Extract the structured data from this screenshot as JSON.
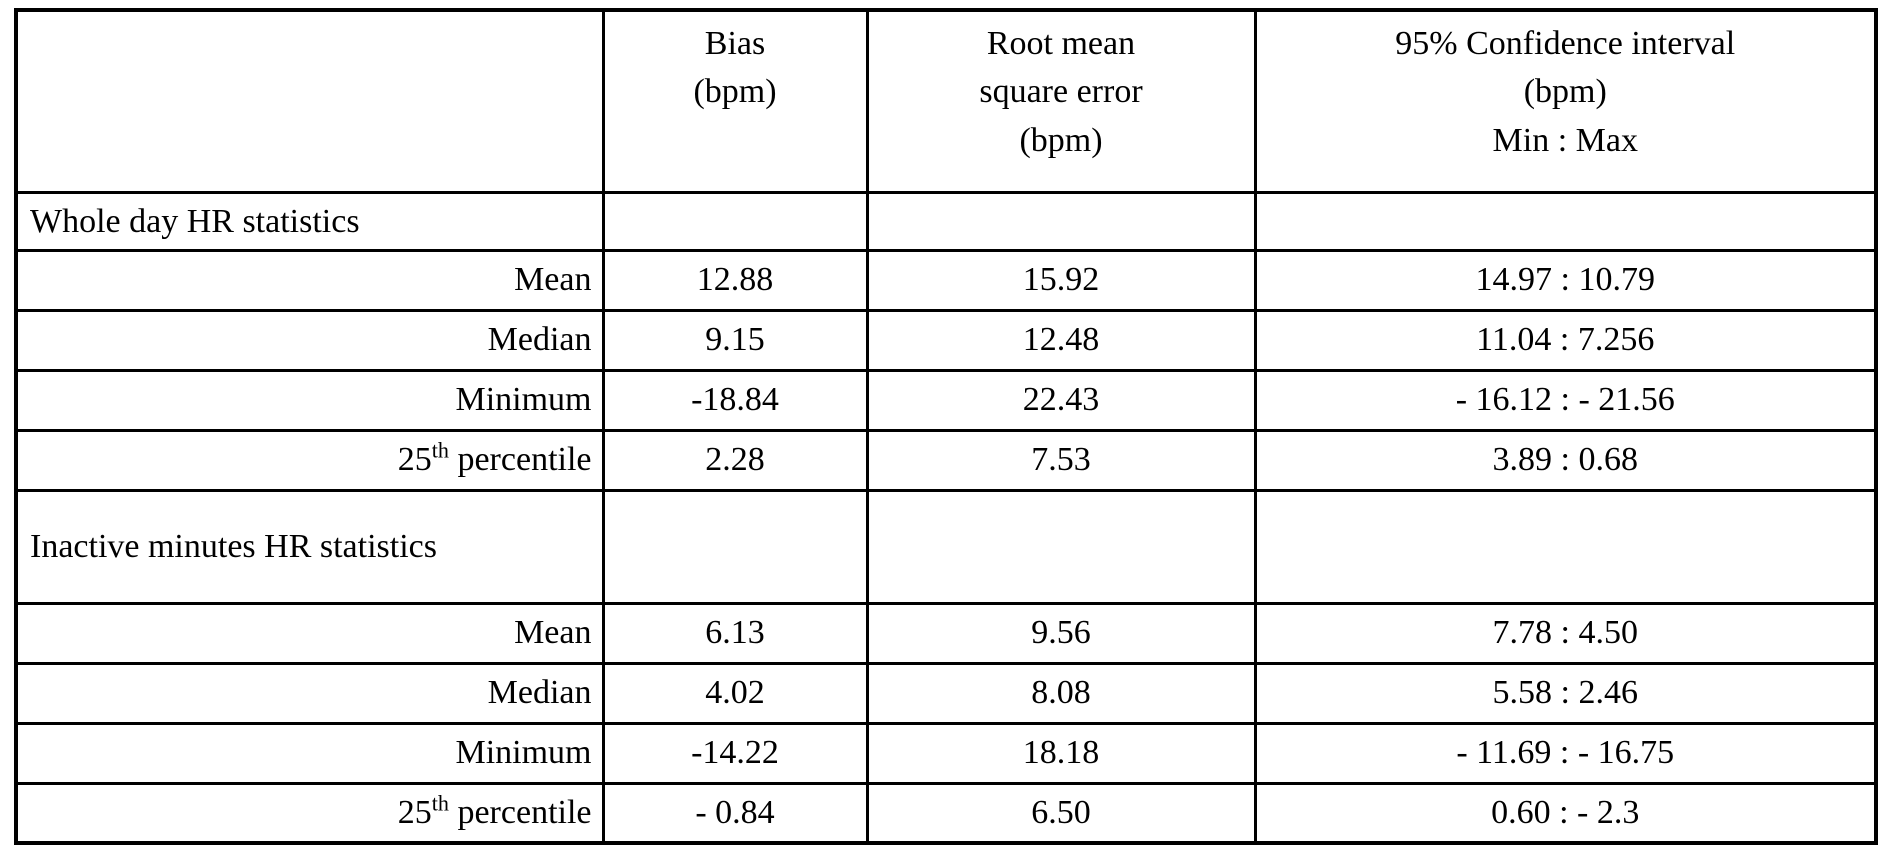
{
  "page": {
    "background_color": "#ffffff",
    "text_color": "#000000",
    "border_color": "#000000"
  },
  "table": {
    "headers": {
      "row_label": "",
      "bias": "Bias\n(bpm)",
      "rmse": "Root mean\nsquare error\n(bpm)",
      "ci": "95% Confidence interval\n(bpm)\nMin : Max"
    },
    "sections": [
      {
        "title": "Whole day HR statistics",
        "rows": [
          {
            "label": "Mean",
            "bias": "12.88",
            "rmse": "15.92",
            "ci": "14.97 : 10.79"
          },
          {
            "label": "Median",
            "bias": "9.15",
            "rmse": "12.48",
            "ci": "11.04 : 7.256"
          },
          {
            "label": "Minimum",
            "bias": "-18.84",
            "rmse": "22.43",
            "ci": "- 16.12 : - 21.56"
          },
          {
            "label_base": "25",
            "label_sup": "th",
            "label_rest": " percentile",
            "bias": "2.28",
            "rmse": "7.53",
            "ci": "3.89 : 0.68"
          }
        ]
      },
      {
        "title": "Inactive minutes HR statistics",
        "rows": [
          {
            "label": "Mean",
            "bias": "6.13",
            "rmse": "9.56",
            "ci": "7.78 : 4.50"
          },
          {
            "label": "Median",
            "bias": "4.02",
            "rmse": "8.08",
            "ci": "5.58 : 2.46"
          },
          {
            "label": "Minimum",
            "bias": "-14.22",
            "rmse": "18.18",
            "ci": "- 11.69 : - 16.75"
          },
          {
            "label_base": "25",
            "label_sup": "th",
            "label_rest": " percentile",
            "bias": "- 0.84",
            "rmse": "6.50",
            "ci": "0.60 : - 2.3"
          }
        ]
      }
    ]
  },
  "chart_data": {
    "type": "table",
    "title": "",
    "columns": [
      "",
      "Bias (bpm)",
      "Root mean square error (bpm)",
      "95% Confidence interval (bpm) Min : Max"
    ],
    "rows": [
      [
        "Whole day HR statistics",
        "",
        "",
        ""
      ],
      [
        "Mean",
        "12.88",
        "15.92",
        "14.97 : 10.79"
      ],
      [
        "Median",
        "9.15",
        "12.48",
        "11.04 : 7.256"
      ],
      [
        "Minimum",
        "-18.84",
        "22.43",
        "- 16.12 : - 21.56"
      ],
      [
        "25th percentile",
        "2.28",
        "7.53",
        "3.89 : 0.68"
      ],
      [
        "Inactive minutes HR statistics",
        "",
        "",
        ""
      ],
      [
        "Mean",
        "6.13",
        "9.56",
        "7.78 : 4.50"
      ],
      [
        "Median",
        "4.02",
        "8.08",
        "5.58 : 2.46"
      ],
      [
        "Minimum",
        "-14.22",
        "18.18",
        "- 11.69 : - 16.75"
      ],
      [
        "25th percentile",
        "- 0.84",
        "6.50",
        "0.60 : - 2.3"
      ]
    ]
  }
}
